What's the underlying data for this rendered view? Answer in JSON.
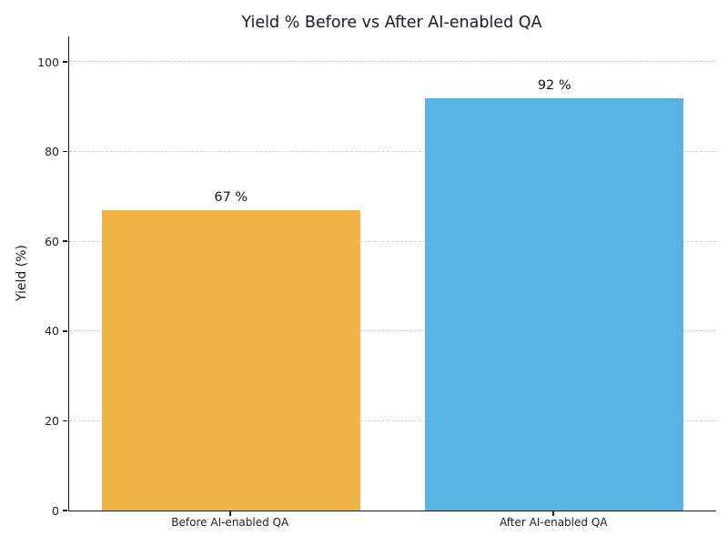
{
  "chart_data": {
    "type": "bar",
    "title": "Yield % Before vs After AI-enabled QA",
    "ylabel": "Yield (%)",
    "xlabel": "",
    "categories": [
      "Before AI-enabled QA",
      "After AI-enabled QA"
    ],
    "values": [
      67,
      92
    ],
    "value_labels": [
      "67 %",
      "92 %"
    ],
    "bar_colors": [
      "#F2B445",
      "#57B3E3"
    ],
    "yticks": [
      0,
      20,
      40,
      60,
      80,
      100
    ],
    "ylim": [
      0,
      105.7
    ],
    "grid": "horizontal-dashed",
    "gridline_color": "#cbcbcb",
    "legend": "none",
    "background_color": "#ffffff"
  }
}
